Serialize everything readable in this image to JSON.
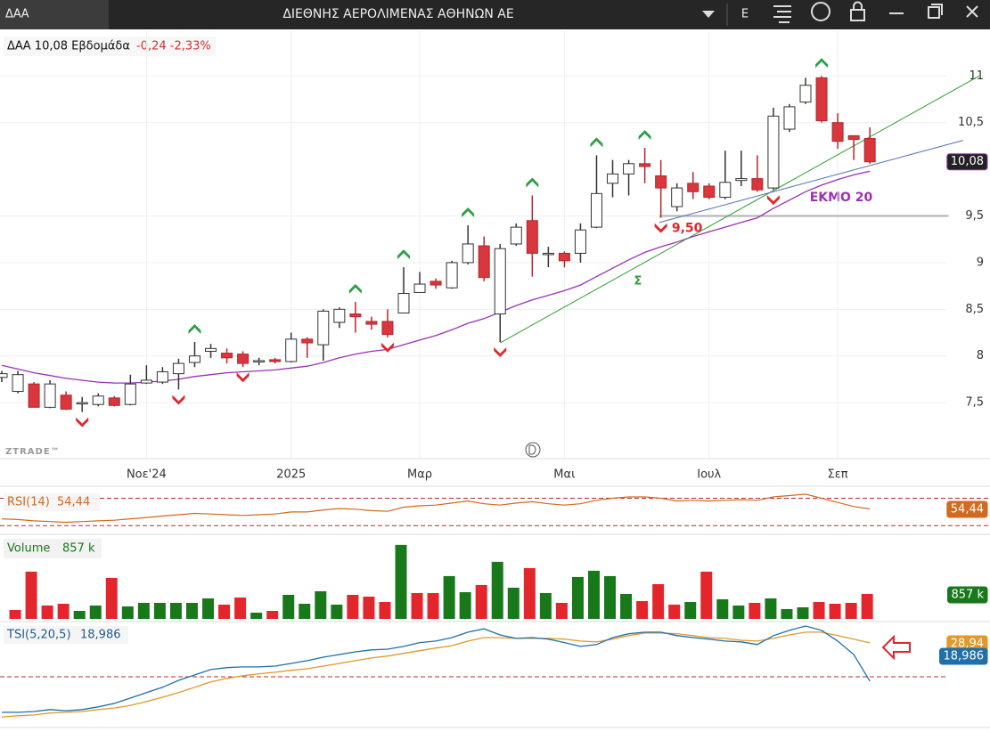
{
  "window": {
    "tab": "ΔΑΑ",
    "title": "ΔΙΕΘΝΗΣ ΑΕΡΟΛΙΜΕΝΑΣ ΑΘΗΝΩΝ ΑΕ",
    "button": "E"
  },
  "chart_data": [
    {
      "type": "candlestick",
      "header": "ΔΑΑ 10,08 Εβδομάδα",
      "change": "-0,24 -2,33%",
      "watermark": "ZTRADE™",
      "categories": [
        null,
        null,
        null,
        null,
        null,
        null,
        null,
        null,
        null,
        "Νοε'24",
        null,
        null,
        null,
        null,
        null,
        null,
        null,
        null,
        "2025",
        null,
        null,
        null,
        null,
        null,
        null,
        null,
        "Μαρ",
        null,
        null,
        null,
        null,
        null,
        null,
        null,
        null,
        "Μαι",
        null,
        null,
        null,
        null,
        null,
        null,
        null,
        null,
        "Ιουλ",
        null,
        null,
        null,
        null,
        null,
        null,
        null,
        "Σεπ",
        null,
        null
      ],
      "open": [
        7.77,
        7.62,
        7.7,
        7.45,
        7.58,
        7.5,
        7.48,
        7.55,
        7.48,
        7.71,
        7.72,
        7.81,
        7.93,
        8.05,
        8.03,
        8.02,
        7.94,
        7.96,
        7.94,
        8.18,
        8.12,
        8.36,
        8.45,
        8.37,
        8.37,
        8.46,
        8.68,
        8.8,
        8.73,
        9.0,
        9.18,
        8.45,
        9.2,
        9.45,
        9.1,
        9.1,
        9.1,
        9.38,
        9.85,
        9.95,
        10.06,
        9.93,
        9.6,
        9.85,
        9.82,
        9.7,
        9.88,
        9.9,
        9.8,
        10.43,
        10.72,
        10.98,
        10.5,
        10.36,
        10.33
      ],
      "high": [
        7.84,
        7.84,
        7.72,
        7.74,
        7.62,
        7.56,
        7.6,
        7.57,
        7.8,
        7.9,
        7.88,
        7.97,
        8.15,
        8.13,
        8.08,
        8.05,
        7.98,
        7.98,
        8.25,
        8.2,
        8.5,
        8.52,
        8.58,
        8.42,
        8.5,
        8.95,
        8.9,
        8.83,
        9.02,
        9.4,
        9.28,
        9.2,
        9.42,
        9.72,
        9.17,
        9.12,
        9.42,
        10.15,
        10.1,
        10.1,
        10.23,
        10.1,
        9.85,
        9.97,
        9.85,
        10.2,
        10.2,
        10.15,
        10.66,
        10.7,
        10.98,
        11.0,
        10.6,
        10.36,
        10.45
      ],
      "low": [
        7.72,
        7.6,
        7.45,
        7.44,
        7.42,
        7.4,
        7.46,
        7.46,
        7.47,
        7.7,
        7.7,
        7.64,
        7.88,
        7.98,
        7.92,
        7.88,
        7.9,
        7.92,
        7.93,
        7.98,
        7.95,
        8.3,
        8.25,
        8.28,
        8.2,
        8.46,
        8.68,
        8.72,
        8.72,
        8.98,
        8.8,
        8.15,
        9.18,
        8.85,
        8.95,
        8.95,
        9.0,
        9.37,
        9.7,
        9.72,
        9.85,
        9.48,
        9.55,
        9.68,
        9.68,
        9.68,
        9.82,
        9.76,
        9.78,
        10.4,
        10.7,
        10.5,
        10.22,
        10.1,
        10.06
      ],
      "close": [
        7.81,
        7.8,
        7.45,
        7.7,
        7.43,
        7.5,
        7.57,
        7.47,
        7.7,
        7.74,
        7.83,
        7.92,
        8.0,
        8.08,
        7.98,
        7.92,
        7.95,
        7.94,
        8.18,
        8.14,
        8.48,
        8.5,
        8.42,
        8.34,
        8.23,
        8.67,
        8.77,
        8.76,
        9.0,
        9.2,
        8.84,
        9.15,
        9.38,
        9.1,
        9.1,
        9.02,
        9.35,
        9.74,
        9.95,
        10.06,
        10.03,
        9.8,
        9.8,
        9.76,
        9.7,
        9.86,
        9.9,
        9.78,
        10.57,
        10.67,
        10.9,
        10.52,
        10.3,
        10.32,
        10.08
      ],
      "up_color": "#ffffff",
      "down_color": "#d9363e",
      "ylim": [
        6.9,
        11.48
      ],
      "yticks": [
        {
          "value": 7.5,
          "label": "7,5"
        },
        8,
        {
          "value": 8.5,
          "label": "8,5"
        },
        9,
        {
          "value": 9.5,
          "label": "9,5"
        },
        {
          "value": 10.5,
          "label": "10,5"
        },
        11
      ],
      "grid": true,
      "last_price": {
        "value": 10.08,
        "label": "10,08"
      },
      "ema": {
        "name": "ΕΚΜΟ 20",
        "color": "#9b30b5",
        "values": [
          7.9,
          7.86,
          7.82,
          7.79,
          7.76,
          7.74,
          7.72,
          7.71,
          7.71,
          7.72,
          7.73,
          7.75,
          7.78,
          7.8,
          7.82,
          7.83,
          7.84,
          7.85,
          7.87,
          7.89,
          7.93,
          7.98,
          8.02,
          8.05,
          8.07,
          8.12,
          8.17,
          8.22,
          8.28,
          8.35,
          8.4,
          8.47,
          8.54,
          8.6,
          8.65,
          8.7,
          8.76,
          8.85,
          8.94,
          9.03,
          9.11,
          9.17,
          9.22,
          9.28,
          9.33,
          9.38,
          9.43,
          9.48,
          9.58,
          9.67,
          9.76,
          9.83,
          9.89,
          9.94,
          9.98
        ]
      },
      "trendlines": [
        {
          "color": "#2e9e2e",
          "x": [
            31,
            60.8
          ],
          "y": [
            8.14,
            11.0
          ]
        },
        {
          "color": "#4a6fb5",
          "x": [
            40.9,
            59.8
          ],
          "y": [
            9.43,
            10.31
          ]
        }
      ],
      "level": {
        "value": 9.5,
        "label": "9,50",
        "x": [
          40.9,
          58.9
        ]
      },
      "annotation": "Σ",
      "up_signals": [
        12,
        22,
        25,
        29,
        33,
        37,
        40,
        51
      ],
      "down_signals": [
        5,
        11,
        15,
        24,
        31,
        41,
        48
      ]
    },
    {
      "type": "line",
      "title": "RSI(14)",
      "color": "#d2691e",
      "last_label": "54,44",
      "ylim": [
        20,
        85
      ],
      "levels": [
        70,
        30
      ],
      "values": [
        40,
        39,
        37,
        36,
        35,
        36,
        37,
        38,
        40,
        42,
        44,
        46,
        48,
        47,
        46,
        45,
        46,
        47,
        50,
        50,
        53,
        55,
        54,
        52,
        51,
        57,
        59,
        60,
        63,
        66,
        62,
        60,
        63,
        65,
        62,
        60,
        62,
        67,
        70,
        72,
        72,
        70,
        66,
        67,
        66,
        67,
        68,
        67,
        72,
        74,
        76,
        70,
        64,
        58,
        54.44
      ]
    },
    {
      "type": "bar",
      "title": "Volume",
      "last_label": "857 k",
      "ylim": [
        0,
        2750
      ],
      "values": [
        null,
        306,
        1622,
        459,
        520,
        275,
        459,
        1408,
        428,
        551,
        551,
        551,
        551,
        704,
        490,
        734,
        214,
        275,
        826,
        520,
        949,
        490,
        826,
        765,
        581,
        2540,
        887,
        887,
        1469,
        918,
        1163,
        1959,
        1071,
        1744,
        887,
        551,
        1438,
        1652,
        1469,
        857,
        612,
        1193,
        490,
        581,
        1622,
        673,
        459,
        551,
        704,
        337,
        398,
        581,
        520,
        551,
        857
      ],
      "colors": [
        null,
        "#e3262b",
        "#e3262b",
        "#e3262b",
        "#e3262b",
        "#18791a",
        "#18791a",
        "#e3262b",
        "#18791a",
        "#18791a",
        "#18791a",
        "#18791a",
        "#18791a",
        "#18791a",
        "#e3262b",
        "#e3262b",
        "#18791a",
        "#e3262b",
        "#18791a",
        "#18791a",
        "#18791a",
        "#18791a",
        "#e3262b",
        "#e3262b",
        "#e3262b",
        "#18791a",
        "#e3262b",
        "#e3262b",
        "#18791a",
        "#18791a",
        "#e3262b",
        "#18791a",
        "#18791a",
        "#e3262b",
        "#18791a",
        "#e3262b",
        "#18791a",
        "#18791a",
        "#18791a",
        "#18791a",
        "#e3262b",
        "#e3262b",
        "#e3262b",
        "#18791a",
        "#e3262b",
        "#18791a",
        "#18791a",
        "#e3262b",
        "#18791a",
        "#18791a",
        "#18791a",
        "#e3262b",
        "#e3262b",
        "#e3262b",
        "#e3262b"
      ]
    },
    {
      "type": "line",
      "title": "TSI(5,20,5)",
      "ylim": [
        7.4,
        34.0
      ],
      "series": [
        {
          "name": "TSI(5,20,5)",
          "color": "#1f6fa8",
          "last_label": "18,986",
          "values": [
            10.9,
            10.9,
            11.1,
            11.6,
            11.3,
            11.6,
            12.3,
            13.2,
            14.6,
            16.0,
            17.4,
            19.2,
            20.6,
            22.0,
            22.5,
            22.7,
            22.7,
            22.9,
            23.6,
            24.3,
            25.2,
            25.9,
            26.6,
            27.1,
            27.3,
            28.0,
            29.0,
            29.4,
            30.3,
            31.7,
            32.6,
            31.0,
            30.1,
            30.3,
            29.9,
            29.0,
            28.0,
            28.5,
            30.3,
            31.3,
            31.7,
            31.7,
            30.8,
            30.3,
            29.9,
            29.4,
            29.2,
            28.5,
            30.8,
            32.2,
            33.3,
            32.2,
            29.4,
            25.9,
            18.986
          ]
        },
        {
          "color": "#e0992a",
          "last_label": "28,94",
          "values": [
            9.7,
            10.0,
            10.2,
            10.7,
            10.9,
            11.1,
            11.6,
            12.0,
            12.7,
            13.7,
            14.8,
            16.0,
            17.4,
            18.8,
            19.7,
            20.4,
            20.9,
            21.3,
            21.8,
            22.2,
            22.9,
            23.6,
            24.3,
            25.0,
            25.5,
            26.2,
            26.9,
            27.6,
            28.2,
            29.4,
            30.3,
            30.3,
            30.1,
            30.1,
            30.1,
            29.9,
            29.4,
            29.2,
            29.9,
            30.8,
            31.5,
            31.5,
            31.3,
            30.8,
            30.3,
            30.1,
            29.6,
            29.4,
            30.1,
            31.0,
            31.7,
            31.7,
            30.8,
            29.9,
            28.94
          ]
        }
      ]
    }
  ]
}
